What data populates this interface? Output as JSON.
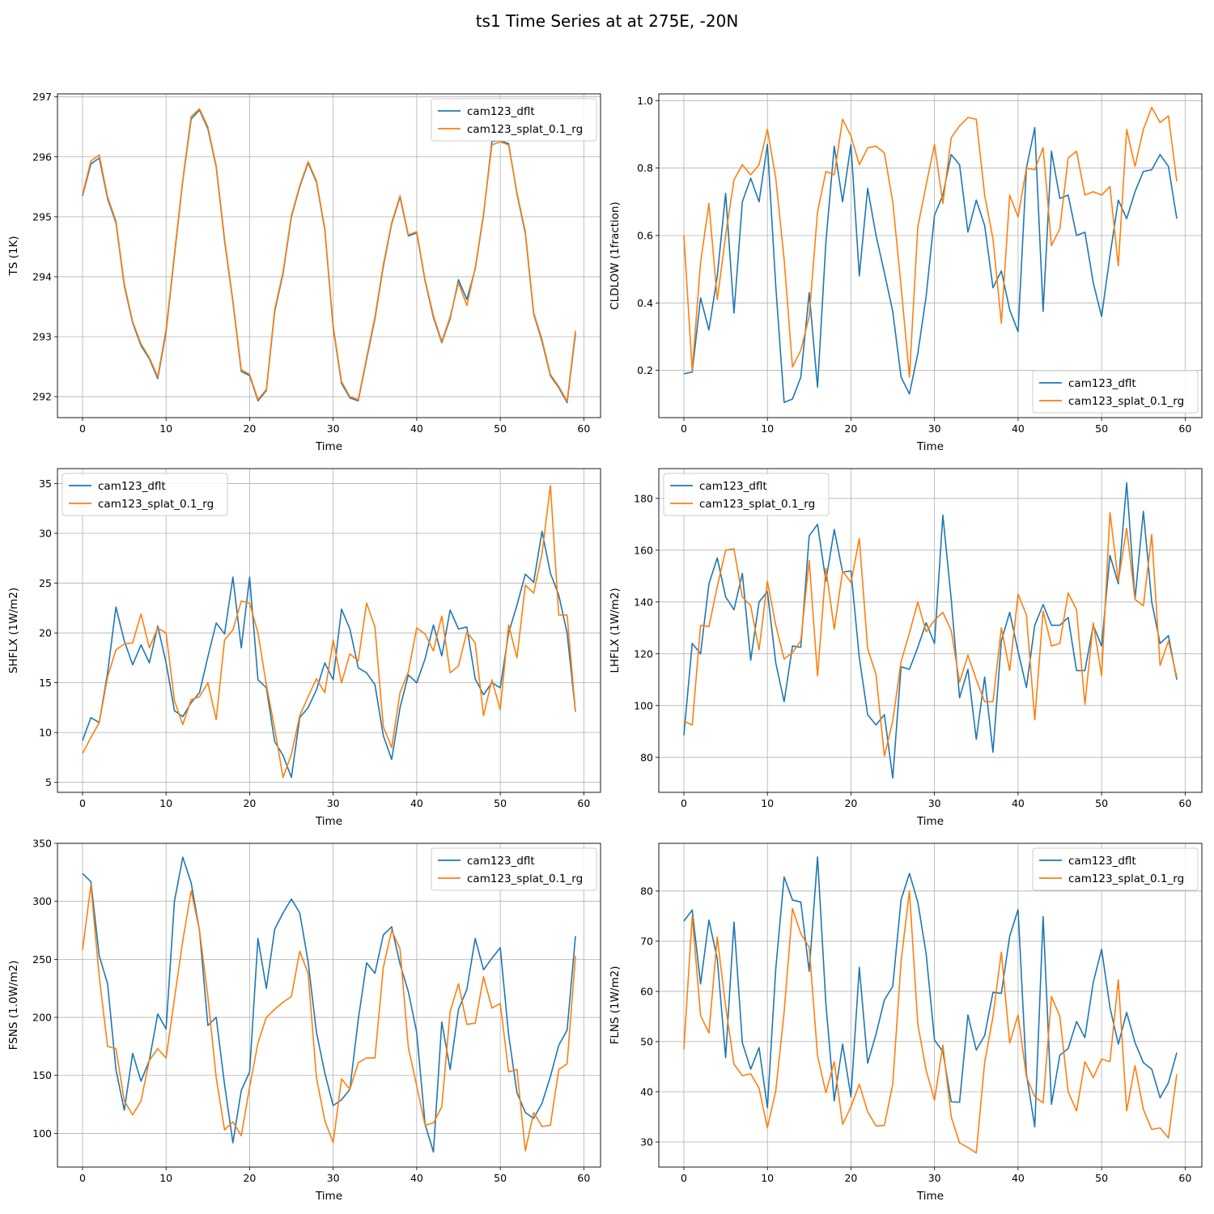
{
  "figure": {
    "title": "ts1 Time Series at at 275E, -20N"
  },
  "colors": {
    "cam123_dflt": "#1f77b4",
    "cam123_splat_0.1_rg": "#ff7f0e",
    "grid": "#b0b0b0"
  },
  "chart_data": [
    {
      "type": "line",
      "title": "",
      "xlabel": "Time",
      "ylabel": "TS (1K)",
      "xlim": [
        -3,
        62
      ],
      "ylim": [
        291.65,
        297.05
      ],
      "xticks": [
        0,
        10,
        20,
        30,
        40,
        50,
        60
      ],
      "yticks": [
        292,
        293,
        294,
        295,
        296,
        297
      ],
      "grid": true,
      "legend": "upper-right",
      "series": [
        {
          "name": "cam123_dflt",
          "color": "#1f77b4",
          "values": [
            295.35,
            295.88,
            295.98,
            295.3,
            294.9,
            293.85,
            293.23,
            292.85,
            292.63,
            292.3,
            293.08,
            294.35,
            295.6,
            296.63,
            296.78,
            296.47,
            295.83,
            294.6,
            293.58,
            292.42,
            292.35,
            291.93,
            292.1,
            293.42,
            294.05,
            295.0,
            295.5,
            295.9,
            295.58,
            294.78,
            293.15,
            292.22,
            291.98,
            291.93,
            292.62,
            293.3,
            294.17,
            294.88,
            295.33,
            294.68,
            294.73,
            293.93,
            293.32,
            292.9,
            293.3,
            293.95,
            293.62,
            294.13,
            295.03,
            296.26,
            296.27,
            296.22,
            295.38,
            294.72,
            293.38,
            292.92,
            292.35,
            292.15,
            291.9,
            293.05
          ]
        },
        {
          "name": "cam123_splat_0.1_rg",
          "color": "#ff7f0e",
          "values": [
            295.37,
            295.93,
            296.03,
            295.33,
            294.93,
            293.88,
            293.25,
            292.88,
            292.65,
            292.33,
            293.12,
            294.38,
            295.62,
            296.67,
            296.8,
            296.5,
            295.85,
            294.63,
            293.6,
            292.45,
            292.37,
            291.95,
            292.12,
            293.45,
            294.08,
            295.02,
            295.52,
            295.92,
            295.6,
            294.8,
            293.18,
            292.25,
            292.0,
            291.95,
            292.65,
            293.33,
            294.2,
            294.9,
            295.35,
            294.7,
            294.75,
            293.95,
            293.35,
            292.92,
            293.33,
            293.9,
            293.52,
            294.15,
            295.05,
            296.2,
            296.25,
            296.2,
            295.4,
            294.75,
            293.4,
            292.95,
            292.37,
            292.17,
            291.92,
            293.1
          ]
        }
      ]
    },
    {
      "type": "line",
      "title": "",
      "xlabel": "Time",
      "ylabel": "CLDLOW (1fraction)",
      "xlim": [
        -3,
        62
      ],
      "ylim": [
        0.06,
        1.02
      ],
      "xticks": [
        0,
        10,
        20,
        30,
        40,
        50,
        60
      ],
      "yticks": [
        0.2,
        0.4,
        0.6,
        0.8,
        1.0
      ],
      "ytick_labels": [
        "0.2",
        "0.4",
        "0.6",
        "0.8",
        "1.0"
      ],
      "grid": true,
      "legend": "lower-right",
      "series": [
        {
          "name": "cam123_dflt",
          "color": "#1f77b4",
          "values": [
            0.19,
            0.195,
            0.415,
            0.32,
            0.48,
            0.725,
            0.37,
            0.7,
            0.77,
            0.7,
            0.87,
            0.45,
            0.105,
            0.115,
            0.18,
            0.43,
            0.15,
            0.58,
            0.865,
            0.7,
            0.87,
            0.48,
            0.74,
            0.6,
            0.49,
            0.375,
            0.18,
            0.13,
            0.25,
            0.42,
            0.66,
            0.72,
            0.84,
            0.81,
            0.61,
            0.705,
            0.63,
            0.445,
            0.495,
            0.38,
            0.315,
            0.8,
            0.92,
            0.375,
            0.85,
            0.71,
            0.72,
            0.6,
            0.61,
            0.46,
            0.36,
            0.54,
            0.705,
            0.65,
            0.73,
            0.79,
            0.795,
            0.84,
            0.805,
            0.65
          ]
        },
        {
          "name": "cam123_splat_0.1_rg",
          "color": "#ff7f0e",
          "values": [
            0.6,
            0.2,
            0.52,
            0.695,
            0.41,
            0.6,
            0.765,
            0.81,
            0.78,
            0.81,
            0.915,
            0.77,
            0.53,
            0.21,
            0.26,
            0.36,
            0.67,
            0.79,
            0.78,
            0.945,
            0.895,
            0.81,
            0.86,
            0.865,
            0.845,
            0.7,
            0.45,
            0.18,
            0.625,
            0.75,
            0.87,
            0.695,
            0.89,
            0.925,
            0.95,
            0.945,
            0.72,
            0.59,
            0.34,
            0.72,
            0.655,
            0.8,
            0.795,
            0.86,
            0.57,
            0.62,
            0.83,
            0.85,
            0.72,
            0.73,
            0.72,
            0.745,
            0.51,
            0.915,
            0.805,
            0.915,
            0.98,
            0.935,
            0.955,
            0.76
          ]
        }
      ]
    },
    {
      "type": "line",
      "title": "",
      "xlabel": "Time",
      "ylabel": "SHFLX (1W/m2)",
      "xlim": [
        -3,
        62
      ],
      "ylim": [
        4.0,
        36.5
      ],
      "xticks": [
        0,
        10,
        20,
        30,
        40,
        50,
        60
      ],
      "yticks": [
        5,
        10,
        15,
        20,
        25,
        30,
        35
      ],
      "grid": true,
      "legend": "upper-left",
      "series": [
        {
          "name": "cam123_dflt",
          "color": "#1f77b4",
          "values": [
            9.2,
            11.5,
            11.0,
            16.0,
            22.6,
            19.2,
            16.8,
            18.8,
            17.0,
            20.7,
            17.0,
            12.2,
            11.6,
            13.0,
            14.0,
            17.6,
            21.0,
            19.9,
            25.6,
            18.5,
            25.6,
            15.3,
            14.5,
            9.1,
            7.7,
            5.5,
            11.5,
            12.5,
            14.3,
            17.0,
            15.3,
            22.4,
            20.4,
            16.5,
            16.0,
            14.8,
            9.7,
            7.3,
            12.5,
            15.8,
            15.0,
            17.4,
            20.8,
            17.7,
            22.3,
            20.4,
            20.6,
            15.4,
            13.8,
            15.0,
            14.5,
            20.0,
            22.8,
            25.9,
            25.1,
            30.2,
            26.0,
            23.8,
            20.0,
            12.1
          ]
        },
        {
          "name": "cam123_splat_0.1_rg",
          "color": "#ff7f0e",
          "values": [
            7.9,
            9.5,
            11.0,
            15.6,
            18.3,
            18.9,
            19.0,
            21.9,
            18.5,
            20.5,
            20.0,
            13.2,
            10.8,
            13.3,
            13.6,
            15.0,
            11.3,
            19.3,
            20.3,
            23.2,
            23.0,
            20.0,
            14.8,
            10.4,
            5.5,
            7.8,
            11.7,
            13.6,
            15.4,
            14.0,
            19.3,
            15.0,
            17.9,
            17.2,
            23.0,
            20.6,
            10.6,
            8.5,
            14.0,
            16.1,
            20.5,
            19.9,
            18.2,
            21.7,
            16.0,
            16.7,
            20.1,
            19.0,
            11.7,
            15.3,
            12.3,
            20.8,
            17.5,
            24.8,
            24.0,
            28.0,
            34.8,
            21.8,
            21.8,
            12.1
          ]
        }
      ]
    },
    {
      "type": "line",
      "title": "",
      "xlabel": "Time",
      "ylabel": "LHFLX (1W/m2)",
      "xlim": [
        -3,
        62
      ],
      "ylim": [
        66.5,
        191.5
      ],
      "xticks": [
        0,
        10,
        20,
        30,
        40,
        50,
        60
      ],
      "yticks": [
        80,
        100,
        120,
        140,
        160,
        180
      ],
      "grid": true,
      "legend": "upper-left",
      "series": [
        {
          "name": "cam123_dflt",
          "color": "#1f77b4",
          "values": [
            88.5,
            124.0,
            120.0,
            147.0,
            157.0,
            142.0,
            137.0,
            151.0,
            117.5,
            140.0,
            144.0,
            116.5,
            101.5,
            123.0,
            122.5,
            165.5,
            170.0,
            148.0,
            168.0,
            151.5,
            152.0,
            118.5,
            96.5,
            92.5,
            96.5,
            72.0,
            115.0,
            114.0,
            122.5,
            132.0,
            124.0,
            173.5,
            141.0,
            103.0,
            114.0,
            87.0,
            111.0,
            82.0,
            125.0,
            136.0,
            121.0,
            107.0,
            131.0,
            139.0,
            131.0,
            131.0,
            134.0,
            113.5,
            113.5,
            131.0,
            123.0,
            158.0,
            147.0,
            186.0,
            141.0,
            175.0,
            140.0,
            124.0,
            127.0,
            110.0
          ]
        },
        {
          "name": "cam123_splat_0.1_rg",
          "color": "#ff7f0e",
          "values": [
            94.0,
            92.5,
            131.0,
            130.5,
            146.0,
            160.0,
            160.5,
            142.0,
            138.5,
            121.5,
            148.0,
            131.0,
            118.0,
            120.5,
            125.0,
            156.0,
            111.5,
            153.0,
            129.5,
            152.0,
            147.5,
            164.5,
            122.0,
            112.0,
            80.5,
            94.0,
            117.0,
            128.0,
            140.0,
            128.5,
            133.0,
            136.0,
            129.0,
            109.0,
            119.5,
            110.0,
            101.5,
            101.5,
            130.0,
            113.5,
            143.0,
            135.0,
            94.5,
            136.5,
            123.0,
            124.0,
            143.5,
            137.0,
            100.5,
            132.0,
            111.5,
            174.5,
            148.0,
            168.5,
            141.0,
            138.5,
            166.0,
            115.5,
            125.0,
            111.0
          ]
        }
      ]
    },
    {
      "type": "line",
      "title": "",
      "xlabel": "Time",
      "ylabel": "FSNS (1.0W/m2)",
      "xlim": [
        -3,
        62
      ],
      "ylim": [
        71.0,
        350.0
      ],
      "xticks": [
        0,
        10,
        20,
        30,
        40,
        50,
        60
      ],
      "yticks": [
        100,
        150,
        200,
        250,
        300,
        350
      ],
      "grid": true,
      "legend": "upper-right",
      "series": [
        {
          "name": "cam123_dflt",
          "color": "#1f77b4",
          "values": [
            324.0,
            317.0,
            253.0,
            229.0,
            155.0,
            120.0,
            169.0,
            145.0,
            163.0,
            203.0,
            190.0,
            300.0,
            338.0,
            316.0,
            275.0,
            193.0,
            200.0,
            142.0,
            92.0,
            137.0,
            153.0,
            268.0,
            225.0,
            276.0,
            290.0,
            302.0,
            290.0,
            248.0,
            187.0,
            152.0,
            124.0,
            129.0,
            138.0,
            198.0,
            247.0,
            238.0,
            271.0,
            278.0,
            246.0,
            222.0,
            187.0,
            108.0,
            84.0,
            196.0,
            155.0,
            207.0,
            224.0,
            268.0,
            241.0,
            251.0,
            260.0,
            185.0,
            135.0,
            118.0,
            113.0,
            126.0,
            149.0,
            176.0,
            189.0,
            270.0
          ]
        },
        {
          "name": "cam123_splat_0.1_rg",
          "color": "#ff7f0e",
          "values": [
            258.0,
            314.0,
            235.0,
            175.0,
            173.0,
            128.0,
            116.0,
            128.0,
            163.0,
            173.0,
            165.0,
            216.0,
            266.0,
            309.0,
            275.0,
            218.0,
            148.0,
            103.0,
            110.0,
            98.0,
            140.0,
            178.0,
            200.0,
            207.0,
            213.0,
            218.0,
            257.0,
            238.0,
            148.0,
            111.0,
            92.0,
            147.0,
            138.0,
            161.0,
            165.0,
            165.0,
            243.0,
            275.0,
            259.0,
            174.0,
            141.0,
            107.0,
            109.0,
            123.0,
            205.0,
            229.0,
            194.0,
            195.0,
            235.0,
            208.0,
            212.0,
            153.0,
            155.0,
            85.0,
            118.0,
            106.0,
            107.0,
            155.0,
            160.0,
            253.0
          ]
        }
      ]
    },
    {
      "type": "line",
      "title": "",
      "xlabel": "Time",
      "ylabel": "FLNS (1W/m2)",
      "xlim": [
        -3,
        62
      ],
      "ylim": [
        25.0,
        89.5
      ],
      "xticks": [
        0,
        10,
        20,
        30,
        40,
        50,
        60
      ],
      "yticks": [
        30,
        40,
        50,
        60,
        70,
        80
      ],
      "grid": true,
      "legend": "upper-right",
      "series": [
        {
          "name": "cam123_dflt",
          "color": "#1f77b4",
          "values": [
            74.0,
            76.2,
            61.5,
            74.2,
            66.5,
            46.8,
            73.8,
            49.8,
            44.5,
            48.8,
            36.8,
            64.5,
            82.8,
            78.2,
            77.8,
            64.0,
            86.8,
            57.5,
            38.2,
            49.5,
            39.0,
            64.8,
            45.7,
            51.5,
            58.3,
            61.0,
            78.3,
            83.5,
            77.8,
            67.5,
            50.3,
            48.0,
            38.0,
            37.9,
            55.3,
            48.3,
            51.2,
            59.8,
            59.6,
            71.0,
            76.3,
            43.6,
            33.0,
            74.9,
            37.5,
            47.3,
            48.6,
            54.0,
            50.8,
            61.8,
            68.4,
            56.8,
            49.5,
            55.8,
            49.8,
            45.8,
            44.5,
            38.8,
            41.8,
            47.8
          ]
        },
        {
          "name": "cam123_splat_0.1_rg",
          "color": "#ff7f0e",
          "values": [
            48.5,
            75.0,
            55.2,
            51.7,
            70.8,
            57.0,
            45.5,
            43.2,
            43.6,
            40.7,
            32.8,
            40.2,
            55.8,
            76.5,
            71.5,
            68.8,
            47.2,
            39.8,
            46.0,
            33.5,
            37.0,
            41.5,
            36.0,
            33.2,
            33.3,
            41.5,
            66.0,
            80.0,
            53.5,
            44.3,
            38.3,
            49.3,
            35.0,
            29.8,
            28.9,
            27.8,
            45.8,
            55.0,
            67.8,
            49.7,
            55.3,
            43.0,
            39.0,
            37.8,
            59.0,
            55.0,
            40.0,
            36.2,
            46.0,
            42.8,
            46.5,
            46.0,
            62.3,
            36.2,
            45.2,
            36.5,
            32.5,
            32.8,
            30.8,
            43.5
          ]
        }
      ]
    }
  ]
}
